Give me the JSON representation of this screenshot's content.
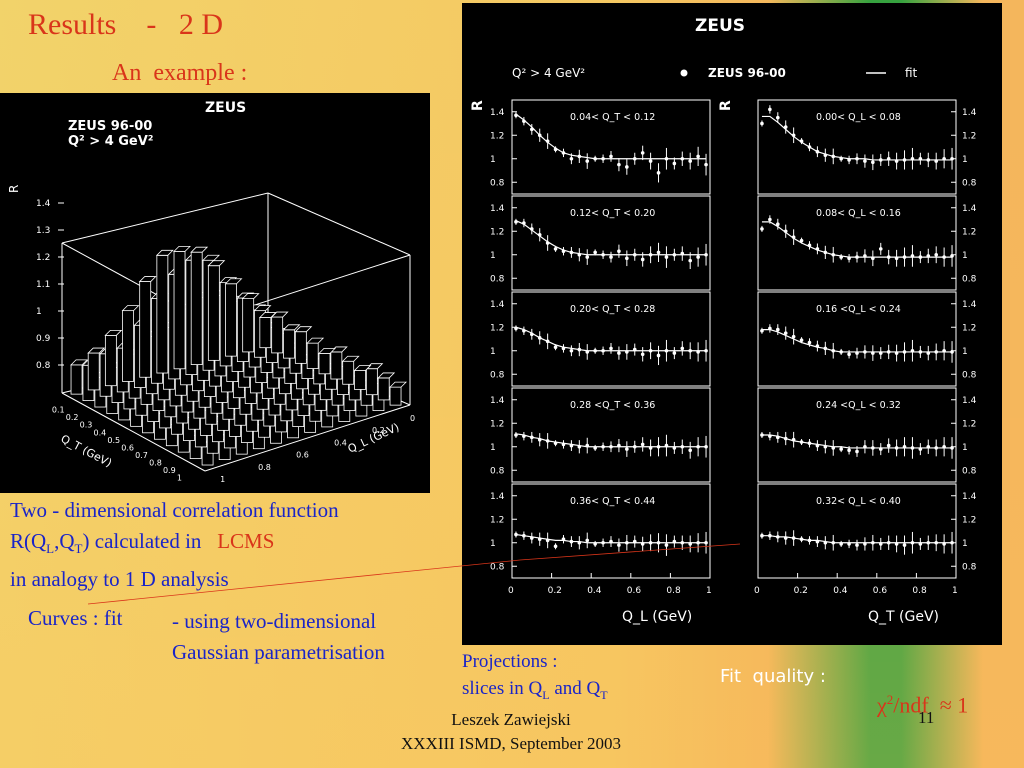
{
  "slide": {
    "title": "Results    -   2 D",
    "subtitle": "An  example :",
    "description": {
      "line1": "Two - dimensional  correlation function",
      "line2_pre": "R(Q",
      "line2_sub1": "L",
      "line2_mid": ",Q",
      "line2_sub2": "T",
      "line2_post": ")  calculated  in",
      "line2_red": "LCMS",
      "line3": "in analogy to 1 D analysis"
    },
    "curves_label": "Curves : fit",
    "curves_desc_line1": "- using  two-dimensional",
    "curves_desc_line2": "Gaussian  parametrisation",
    "projections": {
      "line1": "Projections :",
      "line2_pre": "slices in Q",
      "line2_sub1": "L",
      "line2_mid": " and Q",
      "line2_sub2": "T"
    },
    "fit_quality_label": "Fit  quality :",
    "chi_symbol": "χ",
    "chi_sup": "2",
    "chi_rest": "/ndf  ≈ 1",
    "footer_line1": "Leszek  Zawiejski",
    "footer_line2": "XXXIII  ISMD,  September 2003",
    "page_number": "11"
  },
  "plot3d": {
    "header": "ZEUS",
    "legend_line1": "ZEUS 96-00",
    "legend_line2": "Q² > 4 GeV²",
    "zlabel": "R",
    "z_ticks": [
      "1.4",
      "1.3",
      "1.2",
      "1.1",
      "1",
      "0.9",
      "0.8"
    ],
    "qt_ticks": [
      "0.1",
      "0.2",
      "0.3",
      "0.4",
      "0.5",
      "0.6",
      "0.7",
      "0.8",
      "0.9",
      "1"
    ],
    "ql_ticks": [
      "0",
      "0.2",
      "0.4",
      "0.6",
      "0.8",
      "1"
    ],
    "xlabel": "Q_T (GeV)",
    "ylabel": "Q_L (GeV)"
  },
  "chart_data": {
    "type": "scatter",
    "header": "ZEUS",
    "cut": "Q² > 4 GeV²",
    "legend": [
      "ZEUS 96-00",
      "fit"
    ],
    "ylabel": "R",
    "ylim": [
      0.7,
      1.5
    ],
    "xlim": [
      0,
      1
    ],
    "y_ticks": [
      "1.4",
      "1.2",
      "1",
      "0.8"
    ],
    "x_ticks": [
      "0",
      "0.2",
      "0.4",
      "0.6",
      "0.8",
      "1"
    ],
    "x": [
      0.02,
      0.06,
      0.1,
      0.14,
      0.18,
      0.22,
      0.26,
      0.3,
      0.34,
      0.38,
      0.42,
      0.46,
      0.5,
      0.54,
      0.58,
      0.62,
      0.66,
      0.7,
      0.74,
      0.78,
      0.82,
      0.86,
      0.9,
      0.94,
      0.98
    ],
    "columns": [
      {
        "xlabel": "Q_L (GeV)",
        "panels": [
          {
            "label": "0.04< Q_T < 0.12",
            "values": [
              1.37,
              1.32,
              1.25,
              1.2,
              1.15,
              1.08,
              1.05,
              1.0,
              1.02,
              0.98,
              1.0,
              1.0,
              1.02,
              0.95,
              0.93,
              1.0,
              1.05,
              0.98,
              0.88,
              1.0,
              0.96,
              1.0,
              0.98,
              1.02,
              0.95
            ],
            "fit": [
              1.38,
              1.33,
              1.27,
              1.2,
              1.14,
              1.09,
              1.05,
              1.03,
              1.02,
              1.01,
              1.0,
              1.0,
              1.0,
              1.0,
              1.0,
              1.0,
              1.0,
              1.0,
              1.0,
              1.0,
              1.0,
              1.0,
              1.0,
              1.0,
              1.0
            ]
          },
          {
            "label": "0.12< Q_T < 0.20",
            "values": [
              1.28,
              1.27,
              1.22,
              1.17,
              1.1,
              1.05,
              1.03,
              1.02,
              1.0,
              0.98,
              1.02,
              1.0,
              0.98,
              1.03,
              0.97,
              1.0,
              0.96,
              1.0,
              1.02,
              0.98,
              1.0,
              1.01,
              0.95,
              0.98,
              1.0
            ],
            "fit": [
              1.29,
              1.26,
              1.21,
              1.16,
              1.11,
              1.07,
              1.04,
              1.02,
              1.01,
              1.0,
              1.0,
              1.0,
              1.0,
              1.0,
              1.0,
              1.0,
              1.0,
              1.0,
              1.0,
              1.0,
              1.0,
              1.0,
              1.0,
              1.0,
              1.0
            ]
          },
          {
            "label": "0.20< Q_T < 0.28",
            "values": [
              1.19,
              1.17,
              1.14,
              1.11,
              1.08,
              1.03,
              1.02,
              1.0,
              1.01,
              0.99,
              1.0,
              1.0,
              1.02,
              0.98,
              0.99,
              1.01,
              0.97,
              1.0,
              0.96,
              1.0,
              0.98,
              1.02,
              1.0,
              0.99,
              1.0
            ],
            "fit": [
              1.2,
              1.18,
              1.15,
              1.11,
              1.08,
              1.05,
              1.03,
              1.02,
              1.01,
              1.0,
              1.0,
              1.0,
              1.0,
              1.0,
              1.0,
              1.0,
              1.0,
              1.0,
              1.0,
              1.0,
              1.0,
              1.0,
              1.0,
              1.0,
              1.0
            ]
          },
          {
            "label": "0.28 <Q_T < 0.36",
            "values": [
              1.1,
              1.09,
              1.08,
              1.06,
              1.05,
              1.03,
              1.02,
              1.01,
              1.0,
              1.01,
              0.99,
              1.0,
              1.0,
              1.01,
              0.98,
              1.0,
              1.02,
              0.99,
              1.0,
              1.01,
              0.99,
              1.0,
              0.97,
              1.0,
              1.0
            ],
            "fit": [
              1.11,
              1.1,
              1.08,
              1.07,
              1.05,
              1.04,
              1.03,
              1.02,
              1.01,
              1.0,
              1.0,
              1.0,
              1.0,
              1.0,
              1.0,
              1.0,
              1.0,
              1.0,
              1.0,
              1.0,
              1.0,
              1.0,
              1.0,
              1.0,
              1.0
            ]
          },
          {
            "label": "0.36< Q_T < 0.44",
            "values": [
              1.07,
              1.06,
              1.04,
              1.03,
              1.02,
              0.97,
              1.03,
              1.01,
              1.0,
              1.02,
              0.99,
              1.0,
              1.01,
              0.98,
              1.0,
              1.01,
              0.99,
              1.0,
              1.0,
              0.98,
              1.01,
              1.0,
              0.99,
              1.0,
              1.0
            ],
            "fit": [
              1.07,
              1.06,
              1.05,
              1.04,
              1.03,
              1.02,
              1.02,
              1.01,
              1.01,
              1.0,
              1.0,
              1.0,
              1.0,
              1.0,
              1.0,
              1.0,
              1.0,
              1.0,
              1.0,
              1.0,
              1.0,
              1.0,
              1.0,
              1.0,
              1.0
            ]
          }
        ]
      },
      {
        "xlabel": "Q_T (GeV)",
        "panels": [
          {
            "label": "0.00< Q_L < 0.08",
            "values": [
              1.3,
              1.42,
              1.35,
              1.27,
              1.2,
              1.15,
              1.1,
              1.06,
              1.03,
              1.02,
              1.0,
              0.99,
              1.0,
              0.98,
              0.97,
              0.99,
              1.0,
              0.98,
              0.99,
              1.0,
              1.0,
              0.99,
              0.98,
              1.0,
              1.0
            ],
            "fit": [
              1.36,
              1.36,
              1.31,
              1.25,
              1.19,
              1.14,
              1.1,
              1.06,
              1.04,
              1.02,
              1.01,
              1.0,
              1.0,
              1.0,
              0.99,
              0.99,
              0.99,
              0.99,
              0.99,
              0.99,
              0.99,
              0.99,
              0.99,
              0.99,
              0.99
            ]
          },
          {
            "label": "0.08< Q_L < 0.16",
            "values": [
              1.22,
              1.3,
              1.26,
              1.2,
              1.15,
              1.12,
              1.08,
              1.05,
              1.02,
              1.0,
              0.98,
              0.97,
              0.98,
              0.99,
              0.97,
              1.05,
              0.98,
              0.97,
              0.98,
              0.99,
              0.98,
              0.99,
              1.0,
              0.98,
              0.99
            ],
            "fit": [
              1.28,
              1.28,
              1.24,
              1.19,
              1.14,
              1.1,
              1.07,
              1.04,
              1.02,
              1.0,
              0.99,
              0.98,
              0.98,
              0.98,
              0.98,
              0.98,
              0.98,
              0.98,
              0.98,
              0.98,
              0.98,
              0.98,
              0.98,
              0.98,
              0.98
            ]
          },
          {
            "label": "0.16 <Q_L < 0.24",
            "values": [
              1.17,
              1.19,
              1.18,
              1.15,
              1.12,
              1.09,
              1.07,
              1.04,
              1.02,
              1.0,
              0.99,
              0.97,
              0.98,
              0.99,
              0.98,
              0.98,
              0.99,
              0.98,
              0.99,
              1.0,
              0.99,
              0.98,
              0.99,
              1.0,
              0.99
            ],
            "fit": [
              1.18,
              1.18,
              1.16,
              1.13,
              1.1,
              1.07,
              1.05,
              1.03,
              1.02,
              1.0,
              0.99,
              0.99,
              0.99,
              0.99,
              0.99,
              0.99,
              0.99,
              0.99,
              0.99,
              0.99,
              0.99,
              0.99,
              0.99,
              0.99,
              0.99
            ]
          },
          {
            "label": "0.24 <Q_L < 0.32",
            "values": [
              1.1,
              1.09,
              1.08,
              1.07,
              1.06,
              1.04,
              1.03,
              1.01,
              1.0,
              0.99,
              0.98,
              0.97,
              0.96,
              1.0,
              0.99,
              0.98,
              1.01,
              0.99,
              1.0,
              0.99,
              0.98,
              1.0,
              0.99,
              1.0,
              0.99
            ],
            "fit": [
              1.1,
              1.1,
              1.09,
              1.07,
              1.05,
              1.04,
              1.03,
              1.02,
              1.01,
              1.0,
              1.0,
              0.99,
              0.99,
              0.99,
              0.99,
              0.99,
              0.99,
              0.99,
              0.99,
              0.99,
              0.99,
              0.99,
              0.99,
              0.99,
              0.99
            ]
          },
          {
            "label": "0.32< Q_L < 0.40",
            "values": [
              1.06,
              1.06,
              1.05,
              1.04,
              1.04,
              1.03,
              1.02,
              1.01,
              1.0,
              1.0,
              0.99,
              0.99,
              0.98,
              0.99,
              1.0,
              0.99,
              1.0,
              0.99,
              0.98,
              1.0,
              0.99,
              1.0,
              1.0,
              0.99,
              1.0
            ],
            "fit": [
              1.06,
              1.06,
              1.05,
              1.05,
              1.04,
              1.03,
              1.02,
              1.02,
              1.01,
              1.0,
              1.0,
              1.0,
              1.0,
              1.0,
              1.0,
              1.0,
              1.0,
              1.0,
              1.0,
              1.0,
              1.0,
              1.0,
              1.0,
              1.0,
              1.0
            ]
          }
        ]
      }
    ]
  },
  "colors": {
    "title_red": "#d9351a",
    "text_blue": "#1a24c8",
    "plot_bg": "#000000",
    "plot_fg": "#ffffff"
  }
}
